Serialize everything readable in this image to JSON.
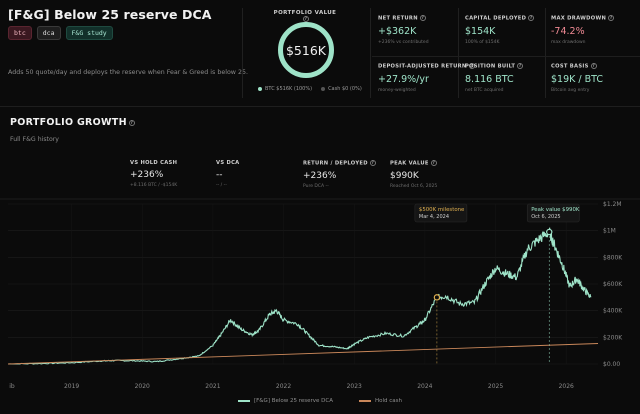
{
  "header": {
    "title": "[F&G] Below 25 reserve DCA",
    "tags": [
      "btc",
      "dca",
      "F&G study"
    ],
    "description": "Adds 50 quote/day and deploys the reserve when Fear & Greed is below 25."
  },
  "portfolio": {
    "label": "PORTFOLIO VALUE",
    "value": "$516K",
    "allocation": [
      {
        "label": "BTC $516K (100%)",
        "color": "#9ee3c8"
      },
      {
        "label": "Cash $0 (0%)",
        "color": "#555555"
      }
    ]
  },
  "metrics": [
    {
      "label": "NET RETURN",
      "value": "+$362K",
      "sub": "+236% vs contributed",
      "color": "#9ee3c8"
    },
    {
      "label": "CAPITAL DEPLOYED",
      "value": "$154K",
      "sub": "100% of $154K",
      "color": "#9ee3c8"
    },
    {
      "label": "MAX DRAWDOWN",
      "value": "-74.2%",
      "sub": "max drawdown",
      "color": "#f08a94"
    },
    {
      "label": "DEPOSIT-ADJUSTED RETURN",
      "value": "+27.9%/yr",
      "sub": "money-weighted",
      "color": "#9ee3c8"
    },
    {
      "label": "POSITION BUILT",
      "value": "8.116 BTC",
      "sub": "net BTC acquired",
      "color": "#9ee3c8"
    },
    {
      "label": "COST BASIS",
      "value": "$19K / BTC",
      "sub": "Bitcoin avg entry",
      "color": "#9ee3c8"
    }
  ],
  "growth": {
    "title": "PORTFOLIO GROWTH",
    "subtitle": "Full F&G history",
    "stats": [
      {
        "label": "VS HOLD CASH",
        "value": "+236%",
        "sub": "+8.116 BTC / -$154K"
      },
      {
        "label": "VS DCA",
        "value": "--",
        "sub": "-- / --"
      },
      {
        "label": "RETURN / DEPLOYED",
        "value": "+236%",
        "sub": "Pure DCA --"
      },
      {
        "label": "PEAK VALUE",
        "value": "$990K",
        "sub": "Reached Oct 6, 2025"
      }
    ]
  },
  "chart_data": {
    "type": "line",
    "x_ticks": [
      "2019",
      "2020",
      "2021",
      "2022",
      "2023",
      "2024",
      "2025",
      "2026"
    ],
    "x_start_label": "ib",
    "y_ticks": [
      "$0.00",
      "$200K",
      "$400K",
      "$600K",
      "$800K",
      "$1M",
      "$1.2M"
    ],
    "ylim": [
      0,
      1200000
    ],
    "series": [
      {
        "name": "[F&G] Below 25 reserve DCA",
        "color": "#9ee3c8",
        "points": [
          [
            2018.1,
            0
          ],
          [
            2018.6,
            4000
          ],
          [
            2019.0,
            10000
          ],
          [
            2019.4,
            22000
          ],
          [
            2019.6,
            26000
          ],
          [
            2019.9,
            24000
          ],
          [
            2020.2,
            18000
          ],
          [
            2020.5,
            38000
          ],
          [
            2020.8,
            60000
          ],
          [
            2021.0,
            140000
          ],
          [
            2021.1,
            210000
          ],
          [
            2021.25,
            330000
          ],
          [
            2021.4,
            260000
          ],
          [
            2021.55,
            220000
          ],
          [
            2021.65,
            250000
          ],
          [
            2021.8,
            370000
          ],
          [
            2021.9,
            400000
          ],
          [
            2022.0,
            330000
          ],
          [
            2022.2,
            300000
          ],
          [
            2022.35,
            220000
          ],
          [
            2022.5,
            140000
          ],
          [
            2022.7,
            130000
          ],
          [
            2022.9,
            115000
          ],
          [
            2023.0,
            150000
          ],
          [
            2023.2,
            200000
          ],
          [
            2023.45,
            230000
          ],
          [
            2023.7,
            210000
          ],
          [
            2023.9,
            290000
          ],
          [
            2024.0,
            330000
          ],
          [
            2024.17,
            500000
          ],
          [
            2024.3,
            510000
          ],
          [
            2024.5,
            450000
          ],
          [
            2024.7,
            460000
          ],
          [
            2024.85,
            600000
          ],
          [
            2025.0,
            720000
          ],
          [
            2025.15,
            680000
          ],
          [
            2025.3,
            650000
          ],
          [
            2025.45,
            860000
          ],
          [
            2025.6,
            930000
          ],
          [
            2025.76,
            990000
          ],
          [
            2025.85,
            870000
          ],
          [
            2025.95,
            740000
          ],
          [
            2026.05,
            580000
          ],
          [
            2026.15,
            640000
          ],
          [
            2026.25,
            560000
          ],
          [
            2026.35,
            500000
          ]
        ]
      },
      {
        "name": "Hold cash",
        "color": "#c9875a",
        "points": [
          [
            2018.1,
            0
          ],
          [
            2026.45,
            154000
          ]
        ]
      }
    ],
    "annotations": [
      {
        "title": "$500K milestone",
        "date": "Mar 4, 2024",
        "x": 2024.17,
        "y": 500000,
        "color": "#e0b050"
      },
      {
        "title": "Peak value $990K",
        "date": "Oct 6, 2025",
        "x": 2025.76,
        "y": 990000,
        "color": "#9ee3c8"
      }
    ]
  }
}
